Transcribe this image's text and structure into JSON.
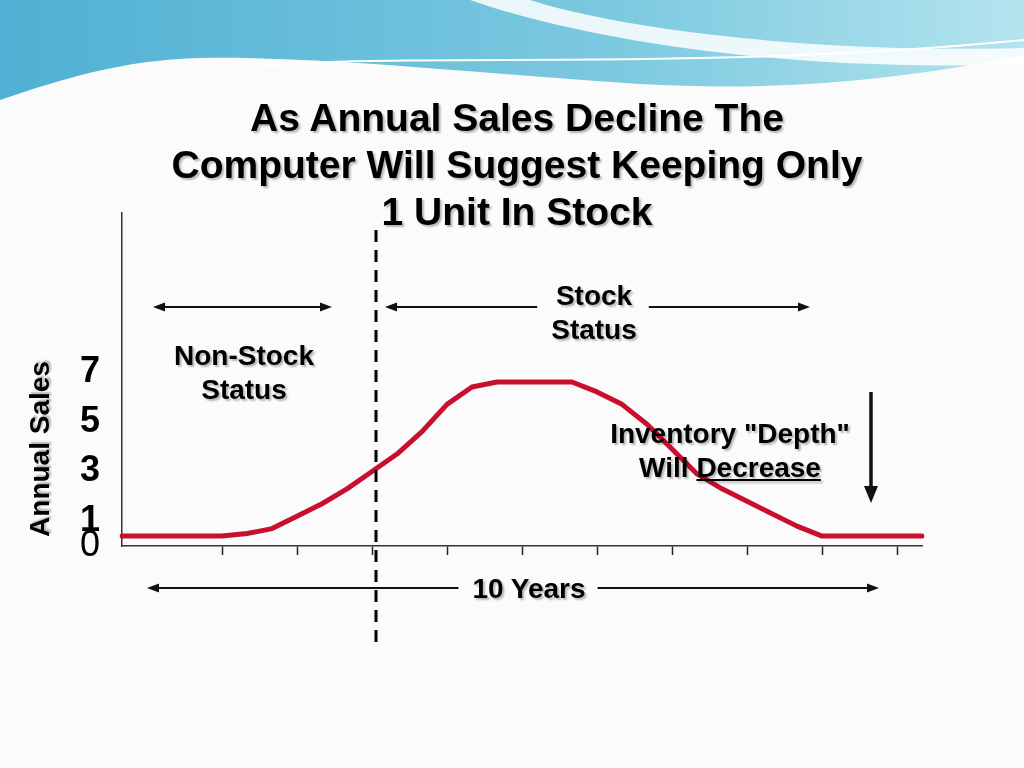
{
  "chart_data": {
    "type": "line",
    "title": "As Annual Sales Decline The\nComputer Will Suggest Keeping Only\n1 Unit In Stock",
    "ylabel": "Annual Sales",
    "categories": [
      null,
      null,
      null,
      null,
      null,
      null,
      null,
      null,
      null,
      null,
      null,
      null,
      null,
      null,
      null,
      null,
      null,
      null,
      null,
      null,
      null,
      null,
      null,
      null,
      null,
      null,
      null,
      null,
      null,
      null,
      null,
      null,
      null
    ],
    "series": [
      {
        "color": "#c8102e",
        "values": [
          0.4,
          0.4,
          0.4,
          0.4,
          0.4,
          0.5,
          0.7,
          1.2,
          1.7,
          2.3,
          3.0,
          3.7,
          4.6,
          5.7,
          6.4,
          6.6,
          6.6,
          6.6,
          6.6,
          6.2,
          5.7,
          4.9,
          3.9,
          2.9,
          2.3,
          1.8,
          1.3,
          0.8,
          0.4,
          0.4,
          0.4,
          0.4,
          0.4
        ]
      }
    ],
    "ylim": [
      0,
      13.4
    ],
    "yticks": [
      0,
      1,
      3,
      5,
      7
    ],
    "grid": false,
    "legend": false,
    "marker": "none",
    "line_style": "solid",
    "tick_labels": "y",
    "annotations": [
      "Non-Stock Status",
      "Stock Status",
      "Inventory \"Depth\" Will Decrease",
      "10 Years"
    ]
  }
}
